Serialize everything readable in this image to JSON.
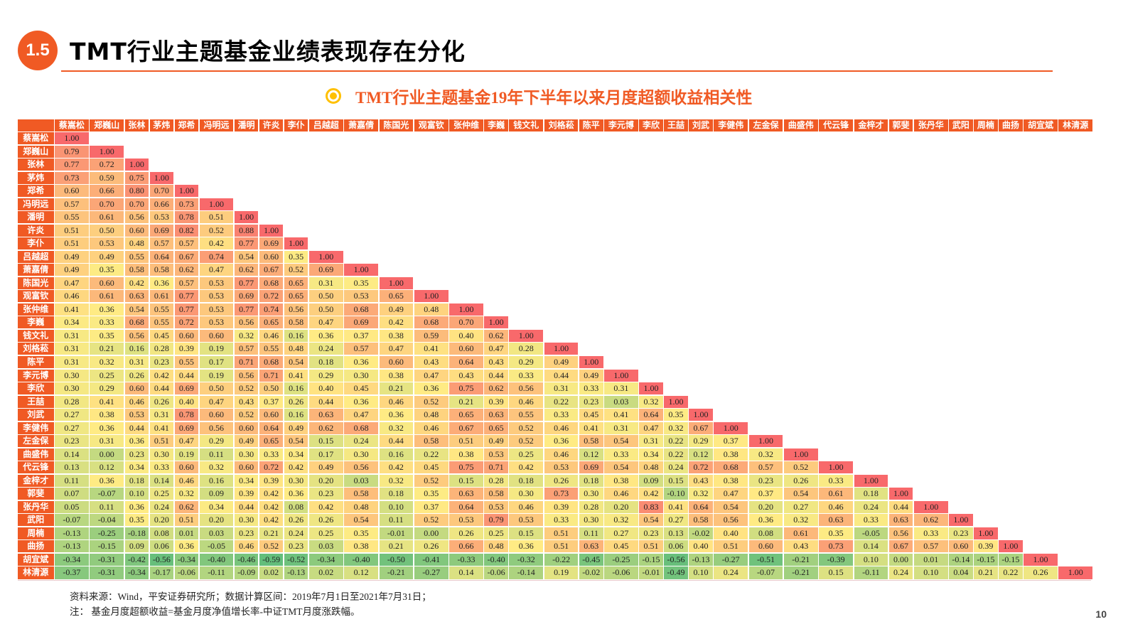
{
  "header": {
    "section_number": "1.5",
    "title": "TMT行业主题基金业绩表现存在分化",
    "accent_color": "#f05a24"
  },
  "chart_data": {
    "type": "heatmap",
    "title": "TMT行业主题基金19年下半年以来月度超额收益相关性",
    "labels": [
      "蔡嵩松",
      "郑巍山",
      "张林",
      "茅炜",
      "郑希",
      "冯明远",
      "潘明",
      "许炎",
      "李仆",
      "吕越超",
      "萧嘉倩",
      "陈国光",
      "观富钦",
      "张仲维",
      "李巍",
      "钱文礼",
      "刘格菘",
      "陈平",
      "李元博",
      "李欣",
      "王喆",
      "刘武",
      "李健伟",
      "左金保",
      "曲盛伟",
      "代云锋",
      "金梓才",
      "郭斐",
      "张丹华",
      "武阳",
      "周楠",
      "曲扬",
      "胡宜斌",
      "林清源"
    ],
    "diagonal": "1.00",
    "lower_triangle": [
      [],
      [
        0.79
      ],
      [
        0.77,
        0.72
      ],
      [
        0.73,
        0.59,
        0.75
      ],
      [
        0.6,
        0.66,
        0.8,
        0.7
      ],
      [
        0.57,
        0.7,
        0.7,
        0.66,
        0.73
      ],
      [
        0.55,
        0.61,
        0.56,
        0.53,
        0.78,
        0.51
      ],
      [
        0.51,
        0.5,
        0.6,
        0.69,
        0.82,
        0.52,
        0.88
      ],
      [
        0.51,
        0.53,
        0.48,
        0.57,
        0.57,
        0.42,
        0.77,
        0.69
      ],
      [
        0.49,
        0.49,
        0.55,
        0.64,
        0.67,
        0.74,
        0.54,
        0.6,
        0.35
      ],
      [
        0.49,
        0.35,
        0.58,
        0.58,
        0.62,
        0.47,
        0.62,
        0.67,
        0.52,
        0.69
      ],
      [
        0.47,
        0.6,
        0.42,
        0.36,
        0.57,
        0.53,
        0.77,
        0.68,
        0.65,
        0.31,
        0.35
      ],
      [
        0.46,
        0.61,
        0.63,
        0.61,
        0.77,
        0.53,
        0.69,
        0.72,
        0.65,
        0.5,
        0.53,
        0.65
      ],
      [
        0.41,
        0.36,
        0.54,
        0.55,
        0.77,
        0.53,
        0.77,
        0.74,
        0.56,
        0.5,
        0.68,
        0.49,
        0.48
      ],
      [
        0.34,
        0.33,
        0.68,
        0.55,
        0.72,
        0.53,
        0.56,
        0.65,
        0.58,
        0.47,
        0.69,
        0.42,
        0.68,
        0.7
      ],
      [
        0.31,
        0.35,
        0.56,
        0.45,
        0.6,
        0.6,
        0.32,
        0.46,
        0.16,
        0.36,
        0.37,
        0.38,
        0.59,
        0.4,
        0.62
      ],
      [
        0.31,
        0.21,
        0.16,
        0.28,
        0.39,
        0.19,
        0.57,
        0.55,
        0.48,
        0.24,
        0.57,
        0.47,
        0.41,
        0.6,
        0.47,
        0.28
      ],
      [
        0.31,
        0.32,
        0.31,
        0.23,
        0.55,
        0.17,
        0.71,
        0.68,
        0.54,
        0.18,
        0.36,
        0.6,
        0.43,
        0.64,
        0.43,
        0.29,
        0.49
      ],
      [
        0.3,
        0.25,
        0.26,
        0.42,
        0.44,
        0.19,
        0.56,
        0.71,
        0.41,
        0.29,
        0.3,
        0.38,
        0.47,
        0.43,
        0.44,
        0.33,
        0.44,
        0.49
      ],
      [
        0.3,
        0.29,
        0.6,
        0.44,
        0.69,
        0.5,
        0.52,
        0.5,
        0.16,
        0.4,
        0.45,
        0.21,
        0.36,
        0.75,
        0.62,
        0.56,
        0.31,
        0.33,
        0.31
      ],
      [
        0.28,
        0.41,
        0.46,
        0.26,
        0.4,
        0.47,
        0.43,
        0.37,
        0.26,
        0.44,
        0.36,
        0.46,
        0.52,
        0.21,
        0.39,
        0.46,
        0.22,
        0.23,
        0.03,
        0.32
      ],
      [
        0.27,
        0.38,
        0.53,
        0.31,
        0.78,
        0.6,
        0.52,
        0.6,
        0.16,
        0.63,
        0.47,
        0.36,
        0.48,
        0.65,
        0.63,
        0.55,
        0.33,
        0.45,
        0.41,
        0.64,
        0.35
      ],
      [
        0.27,
        0.36,
        0.44,
        0.41,
        0.69,
        0.56,
        0.6,
        0.64,
        0.49,
        0.62,
        0.68,
        0.32,
        0.46,
        0.67,
        0.65,
        0.52,
        0.46,
        0.41,
        0.31,
        0.47,
        0.32,
        0.67
      ],
      [
        0.23,
        0.31,
        0.36,
        0.51,
        0.47,
        0.29,
        0.49,
        0.65,
        0.54,
        0.15,
        0.24,
        0.44,
        0.58,
        0.51,
        0.49,
        0.52,
        0.36,
        0.58,
        0.54,
        0.31,
        0.22,
        0.29,
        0.37
      ],
      [
        0.14,
        0.0,
        0.23,
        0.3,
        0.19,
        0.11,
        0.3,
        0.33,
        0.34,
        0.17,
        0.3,
        0.16,
        0.22,
        0.38,
        0.53,
        0.25,
        0.46,
        0.12,
        0.33,
        0.34,
        0.22,
        0.12,
        0.38,
        0.32
      ],
      [
        0.13,
        0.12,
        0.34,
        0.33,
        0.6,
        0.32,
        0.6,
        0.72,
        0.42,
        0.49,
        0.56,
        0.42,
        0.45,
        0.75,
        0.71,
        0.42,
        0.53,
        0.69,
        0.54,
        0.48,
        0.24,
        0.72,
        0.68,
        0.57,
        0.52
      ],
      [
        0.11,
        0.36,
        0.18,
        0.14,
        0.46,
        0.16,
        0.34,
        0.39,
        0.3,
        0.2,
        0.03,
        0.32,
        0.52,
        0.15,
        0.28,
        0.18,
        0.26,
        0.18,
        0.38,
        0.09,
        0.15,
        0.43,
        0.38,
        0.23,
        0.26,
        0.33
      ],
      [
        0.07,
        -0.07,
        0.1,
        0.25,
        0.32,
        0.09,
        0.39,
        0.42,
        0.36,
        0.23,
        0.58,
        0.18,
        0.35,
        0.63,
        0.58,
        0.3,
        0.73,
        0.3,
        0.46,
        0.42,
        -0.1,
        0.32,
        0.47,
        0.37,
        0.54,
        0.61,
        0.18
      ],
      [
        0.05,
        0.11,
        0.36,
        0.24,
        0.62,
        0.34,
        0.44,
        0.42,
        0.08,
        0.42,
        0.48,
        0.1,
        0.37,
        0.64,
        0.53,
        0.46,
        0.39,
        0.28,
        0.2,
        0.83,
        0.41,
        0.64,
        0.54,
        0.2,
        0.27,
        0.46,
        0.24,
        0.44
      ],
      [
        -0.07,
        -0.04,
        0.35,
        0.2,
        0.51,
        0.2,
        0.3,
        0.42,
        0.26,
        0.26,
        0.54,
        0.11,
        0.52,
        0.53,
        0.79,
        0.53,
        0.33,
        0.3,
        0.32,
        0.54,
        0.27,
        0.58,
        0.56,
        0.36,
        0.32,
        0.63,
        0.33,
        0.63,
        0.62
      ],
      [
        -0.13,
        -0.25,
        -0.18,
        0.08,
        0.01,
        0.03,
        0.23,
        0.21,
        0.24,
        0.25,
        0.35,
        -0.01,
        0.0,
        0.26,
        0.25,
        0.15,
        0.51,
        0.11,
        0.27,
        0.23,
        0.13,
        -0.02,
        0.4,
        0.08,
        0.61,
        0.35,
        -0.05,
        0.56,
        0.33,
        0.23
      ],
      [
        -0.13,
        -0.15,
        0.09,
        0.06,
        0.36,
        -0.05,
        0.46,
        0.52,
        0.23,
        0.03,
        0.38,
        0.21,
        0.26,
        0.66,
        0.48,
        0.36,
        0.51,
        0.63,
        0.45,
        0.51,
        0.06,
        0.4,
        0.51,
        0.6,
        0.43,
        0.73,
        0.14,
        0.67,
        0.57,
        0.6,
        0.39
      ],
      [
        -0.34,
        -0.31,
        -0.42,
        -0.56,
        -0.34,
        -0.4,
        -0.46,
        -0.59,
        -0.52,
        -0.34,
        -0.4,
        -0.5,
        -0.41,
        -0.33,
        -0.4,
        -0.32,
        -0.22,
        -0.45,
        -0.25,
        -0.15,
        -0.56,
        -0.13,
        -0.27,
        -0.51,
        -0.21,
        -0.39,
        0.1,
        0.0,
        0.01,
        -0.14,
        -0.15,
        -0.15
      ],
      [
        -0.37,
        -0.31,
        -0.34,
        -0.17,
        -0.06,
        -0.11,
        -0.09,
        0.02,
        -0.13,
        0.02,
        0.12,
        -0.21,
        -0.27,
        0.14,
        -0.06,
        -0.14,
        0.19,
        -0.02,
        -0.06,
        -0.01,
        -0.49,
        0.1,
        0.24,
        -0.07,
        -0.21,
        0.15,
        -0.11,
        0.24,
        0.1,
        0.04,
        0.21,
        0.22,
        0.26
      ]
    ],
    "color_scale": {
      "low": "#63be7b",
      "mid": "#ffeb84",
      "high": "#f8696b",
      "domain": [
        -0.59,
        0.36,
        1.0
      ]
    }
  },
  "footer": {
    "source": "资料来源：Wind，平安证券研究所；数据计算区间：2019年7月1日至2021年7月31日；",
    "note": "注：  基金月度超额收益=基金月度净值增长率-中证TMT月度涨跌幅。",
    "page_number": "10"
  }
}
